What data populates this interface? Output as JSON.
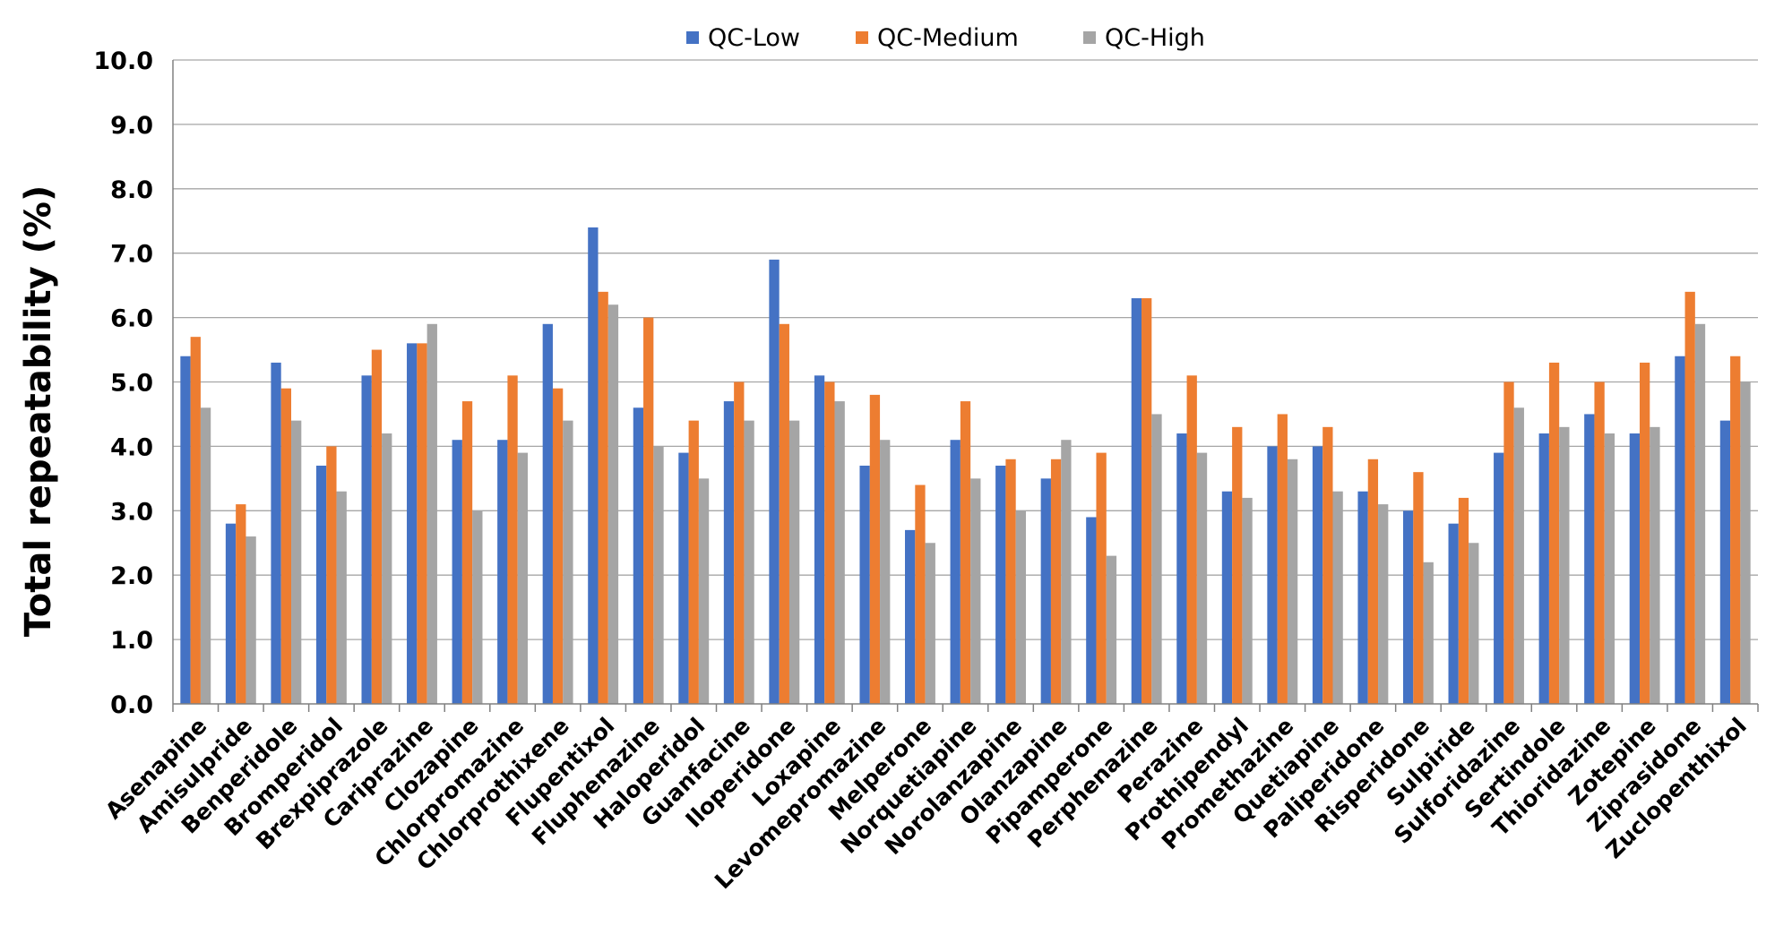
{
  "chart_data": {
    "type": "bar",
    "title": "",
    "xlabel": "",
    "ylabel": "Total  repeatability (%)",
    "ylim": [
      0,
      10
    ],
    "yticks": [
      "0.0",
      "1.0",
      "2.0",
      "3.0",
      "4.0",
      "5.0",
      "6.0",
      "7.0",
      "8.0",
      "9.0",
      "10.0"
    ],
    "grid": "horizontal",
    "legend_position": "top-center",
    "categories": [
      "Asenapine",
      "Amisulpride",
      "Benperidole",
      "Bromperidol",
      "Brexpiprazole",
      "Cariprazine",
      "Clozapine",
      "Chlorpromazine",
      "Chlorprothixene",
      "Flupentixol",
      "Fluphenazine",
      "Haloperidol",
      "Guanfacine",
      "Iloperidone",
      "Loxapine",
      "Levomepromazine",
      "Melperone",
      "Norquetiapine",
      "Norolanzapine",
      "Olanzapine",
      "Pipamperone",
      "Perphenazine",
      "Perazine",
      "Prothipendyl",
      "Promethazine",
      "Quetiapine",
      "Paliperidone",
      "Risperidone",
      "Sulpiride",
      "Sulforidazine",
      "Sertindole",
      "Thioridazine",
      "Zotepine",
      "Ziprasidone",
      "Zuclopenthixol"
    ],
    "series": [
      {
        "name": "QC-Low",
        "color": "#4472C4",
        "values": [
          5.4,
          2.8,
          5.3,
          3.7,
          5.1,
          5.6,
          4.1,
          4.1,
          5.9,
          7.4,
          4.6,
          3.9,
          4.7,
          6.9,
          5.1,
          3.7,
          2.7,
          4.1,
          3.7,
          3.5,
          2.9,
          6.3,
          4.2,
          3.3,
          4.0,
          4.0,
          3.3,
          3.0,
          2.8,
          3.9,
          4.2,
          4.5,
          4.2,
          5.4,
          4.4
        ]
      },
      {
        "name": "QC-Medium",
        "color": "#ED7D31",
        "values": [
          5.7,
          3.1,
          4.9,
          4.0,
          5.5,
          5.6,
          4.7,
          5.1,
          4.9,
          6.4,
          6.0,
          4.4,
          5.0,
          5.9,
          5.0,
          4.8,
          3.4,
          4.7,
          3.8,
          3.8,
          3.9,
          6.3,
          5.1,
          4.3,
          4.5,
          4.3,
          3.8,
          3.6,
          3.2,
          5.0,
          5.3,
          5.0,
          5.3,
          6.4,
          5.4
        ]
      },
      {
        "name": "QC-High",
        "color": "#A5A5A5",
        "values": [
          4.6,
          2.6,
          4.4,
          3.3,
          4.2,
          5.9,
          3.0,
          3.9,
          4.4,
          6.2,
          4.0,
          3.5,
          4.4,
          4.4,
          4.7,
          4.1,
          2.5,
          3.5,
          3.0,
          4.1,
          2.3,
          4.5,
          3.9,
          3.2,
          3.8,
          3.3,
          3.1,
          2.2,
          2.5,
          4.6,
          4.3,
          4.2,
          4.3,
          5.9,
          5.0
        ]
      }
    ]
  }
}
